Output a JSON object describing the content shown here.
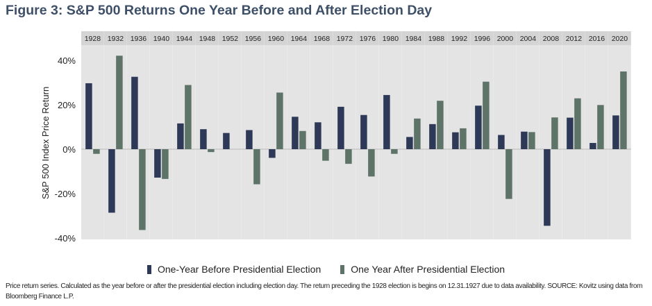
{
  "title": "Figure 3: S&P 500 Returns One Year Before and After Election Day",
  "chart_data": {
    "type": "bar",
    "title": "Figure 3: S&P 500 Returns One Year Before and After Election Day",
    "xlabel": "",
    "ylabel": "S&P 500 Index Price Return",
    "ylim": [
      -40,
      45
    ],
    "yticks": [
      -40,
      -20,
      0,
      20,
      40
    ],
    "ytick_labels": [
      "-40%",
      "-20%",
      "0%",
      "20%",
      "40%"
    ],
    "categories": [
      "1928",
      "1932",
      "1936",
      "1940",
      "1944",
      "1948",
      "1952",
      "1956",
      "1960",
      "1964",
      "1968",
      "1972",
      "1976",
      "1980",
      "1984",
      "1988",
      "1992",
      "1996",
      "2000",
      "2004",
      "2008",
      "2012",
      "2016",
      "2020"
    ],
    "series": [
      {
        "name": "One-Year Before Presidential Election",
        "color": "#2e3857",
        "values": [
          29.7,
          -28.6,
          32.6,
          -12.8,
          11.6,
          9.0,
          7.3,
          8.6,
          -3.9,
          14.6,
          12.1,
          19.1,
          15.4,
          24.4,
          5.5,
          11.3,
          7.6,
          19.6,
          6.4,
          7.9,
          -34.5,
          14.2,
          2.8,
          15.2
        ]
      },
      {
        "name": "One Year After Presidential Election",
        "color": "#5f7468",
        "values": [
          -2.1,
          42.1,
          -36.4,
          -13.4,
          28.9,
          -1.3,
          0,
          -15.8,
          25.5,
          8.2,
          -5.2,
          -6.6,
          -12.3,
          -2.1,
          13.8,
          21.8,
          9.4,
          30.4,
          -22.4,
          7.7,
          14.3,
          22.9,
          19.9,
          35.0
        ]
      }
    ],
    "legend": "bottom-center",
    "grid": false,
    "colors": {
      "panel": "#e4e4e4",
      "header": "#d4d4d4",
      "zero_line": "#b9b9b9"
    }
  },
  "legend": {
    "before": "One-Year Before Presidential Election",
    "after": "One Year After Presidential Election"
  },
  "footnote": "Price return series. Calculated as the year before or after the presidential election including election day. The return preceding the 1928 election is begins on 12.31.1927 due to data availability. SOURCE: Kovitz using data from Bloomberg Finance L.P."
}
